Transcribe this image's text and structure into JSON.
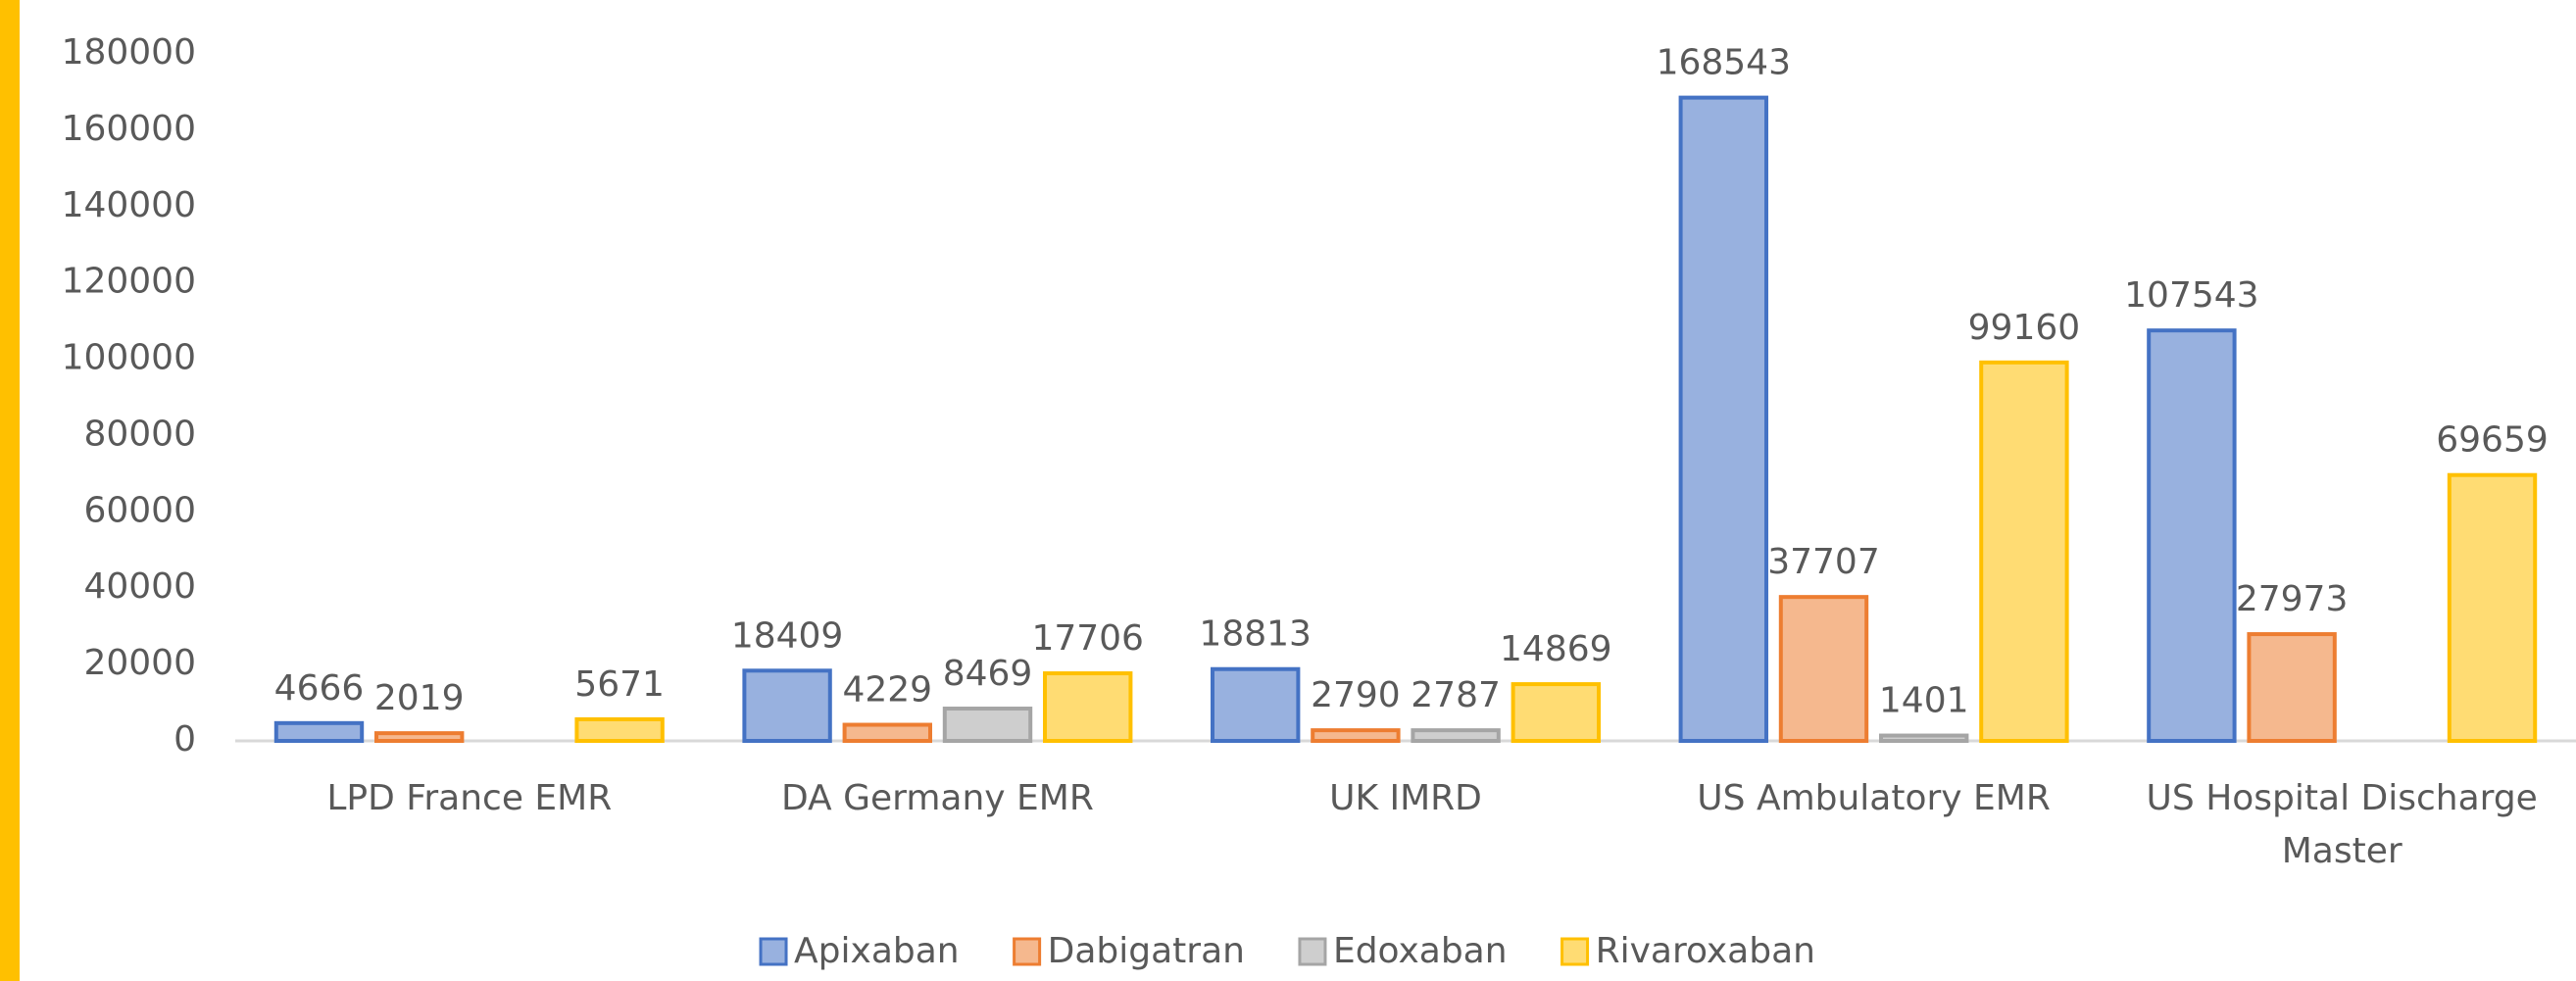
{
  "chart_data": {
    "type": "bar",
    "categories": [
      "LPD France EMR",
      "DA Germany EMR",
      "UK IMRD",
      "US Ambulatory EMR",
      "US Hospital Discharge Master"
    ],
    "series": [
      {
        "name": "Apixaban",
        "color": "#4472c4",
        "values": [
          4666,
          18409,
          18813,
          168543,
          107543
        ]
      },
      {
        "name": "Dabigatran",
        "color": "#ed7d31",
        "values": [
          2019,
          4229,
          2790,
          37707,
          27973
        ]
      },
      {
        "name": "Edoxaban",
        "color": "#a5a5a5",
        "values": [
          null,
          8469,
          2787,
          1401,
          null
        ]
      },
      {
        "name": "Rivaroxaban",
        "color": "#ffc000",
        "values": [
          5671,
          17706,
          14869,
          99160,
          69659
        ]
      }
    ],
    "ylim": [
      0,
      180000
    ],
    "yticks": [
      0,
      20000,
      40000,
      60000,
      80000,
      100000,
      120000,
      140000,
      160000,
      180000
    ],
    "grid": false,
    "legend": "bottom"
  }
}
